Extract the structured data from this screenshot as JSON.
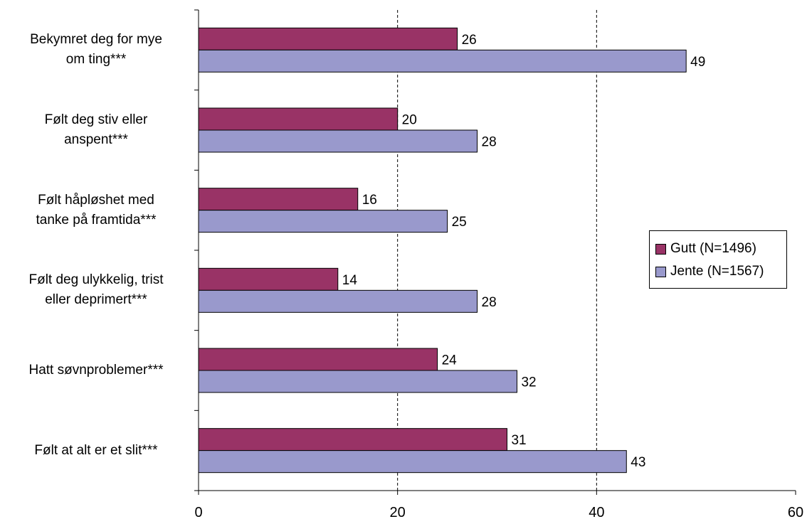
{
  "chart_data": {
    "type": "bar",
    "orientation": "horizontal",
    "categories": [
      "Bekymret deg for mye\nom ting***",
      "Følt deg stiv eller\nanspent***",
      "Følt håpløshet med\ntanke på framtida***",
      "Følt deg ulykkelig, trist\neller deprimert***",
      "Hatt søvnproblemer***",
      "Følt at alt er et slit***"
    ],
    "series": [
      {
        "name": "Gutt (N=1496)",
        "color": "#993366",
        "values": [
          26,
          20,
          16,
          14,
          24,
          31
        ]
      },
      {
        "name": "Jente (N=1567)",
        "color": "#9999CC",
        "values": [
          49,
          28,
          25,
          28,
          32,
          43
        ]
      }
    ],
    "xlim": [
      0,
      60
    ],
    "xticks": [
      0,
      20,
      40,
      60
    ],
    "gridlines": "dashed vertical at 20 and 40",
    "legend_position": "right",
    "data_labels": true
  }
}
